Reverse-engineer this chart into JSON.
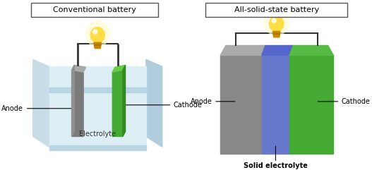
{
  "title_left": "Conventional battery",
  "title_right": "All-solid-state battery",
  "label_anode_left": "Anode",
  "label_cathode_left": "Cathode",
  "label_electrolyte_left": "Electrolyte",
  "label_anode_right": "Anode",
  "label_cathode_right": "Cathode",
  "label_electrolyte_right": "Solid electrolyte",
  "bg_color": "#ffffff",
  "liquid_color": "#cce4ee",
  "liquid_inner_color": "#ddeef5",
  "anode_gray_dark": "#7a7a7a",
  "anode_gray_light": "#aaaaaa",
  "anode_gray_mid": "#909090",
  "cathode_green": "#44aa33",
  "cathode_green_dark": "#338822",
  "cathode_green_light": "#66cc44",
  "solid_electrolyte_blue": "#6677cc",
  "solid_electrolyte_blue_dark": "#5566bb",
  "anode_right_gray": "#888888",
  "anode_right_gray_top": "#aaaaaa",
  "cathode_right_green": "#44aa33",
  "cathode_right_green_top": "#55bb44",
  "wire_color": "#333333",
  "bulb_yellow": "#ffdd44",
  "bulb_orange": "#cc8800",
  "bulb_glow": "#fffacc",
  "container_outer": "#b8d5e0",
  "container_inner": "#ddeef5",
  "container_side_left": "#c8dde8",
  "container_side_right": "#b0ccdd"
}
